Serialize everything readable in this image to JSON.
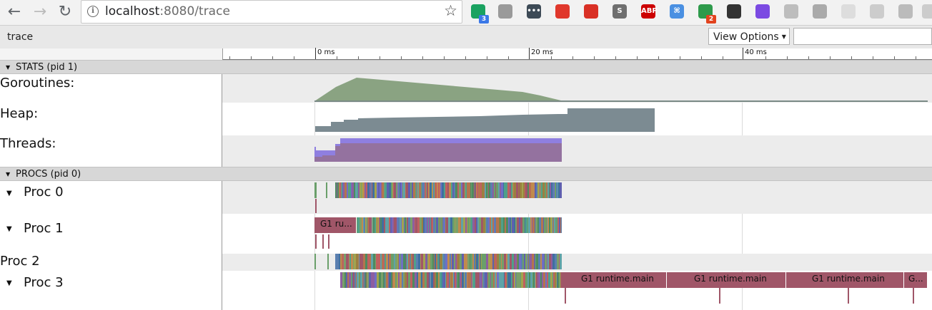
{
  "browser": {
    "url_host": "localhost",
    "url_rest": ":8080/trace",
    "extensions": [
      {
        "icon": "green-chat-icon",
        "color": "#1aa260",
        "badge": "3",
        "badge_color": "#3b78e7"
      },
      {
        "icon": "pin-icon",
        "color": "#9a9a9a"
      },
      {
        "icon": "dots-icon",
        "color": "#3d4a56",
        "text": "•••"
      },
      {
        "icon": "video-icon",
        "color": "#e0382c"
      },
      {
        "icon": "hand-icon",
        "color": "#d93025"
      },
      {
        "icon": "s-icon",
        "color": "#6f6f6f",
        "text": "S"
      },
      {
        "icon": "adblock-icon",
        "color": "#c00",
        "text": "ABP"
      },
      {
        "icon": "cmd-icon",
        "color": "#4a90e2",
        "text": "⌘"
      },
      {
        "icon": "green-r-icon",
        "color": "#2e9a4b",
        "badge": "2",
        "badge_color": "#e2431e"
      },
      {
        "icon": "glasses-icon",
        "color": "#333"
      },
      {
        "icon": "cursor-icon",
        "color": "#7b4ae2"
      },
      {
        "icon": "puzzle-icon",
        "color": "#bdbdbd"
      },
      {
        "icon": "anchor-icon",
        "color": "#aaa"
      },
      {
        "icon": "box-icon",
        "color": "#ddd"
      },
      {
        "icon": "gear-ext-icon",
        "color": "#ccc"
      },
      {
        "icon": "drive-icon",
        "color": "#bbb"
      },
      {
        "icon": "more-ext-icon",
        "color": "#ccc"
      }
    ]
  },
  "viewer": {
    "title": "trace",
    "view_options_label": "View Options",
    "ruler_labels": [
      "0 ms",
      "20 ms",
      "40 ms"
    ]
  },
  "groups": {
    "stats": "STATS (pid 1)",
    "procs": "PROCS (pid 0)"
  },
  "rows": {
    "goroutines": "Goroutines:",
    "heap": "Heap:",
    "threads": "Threads:",
    "proc0": "Proc 0",
    "proc1": "Proc 1",
    "proc2": "Proc 2",
    "proc3": "Proc 3"
  },
  "slices": {
    "proc1_first": "G1 ru...",
    "proc3_a": "G1 runtime.main",
    "proc3_b": "G1 runtime.main",
    "proc3_c": "G1 runtime.main",
    "proc3_d": "G..."
  },
  "colors": {
    "goroutines": "#8aa382",
    "heap": "#7c8b92",
    "threads_a": "#8f7fe0",
    "threads_b": "#94729f",
    "slice": "#a05668"
  }
}
